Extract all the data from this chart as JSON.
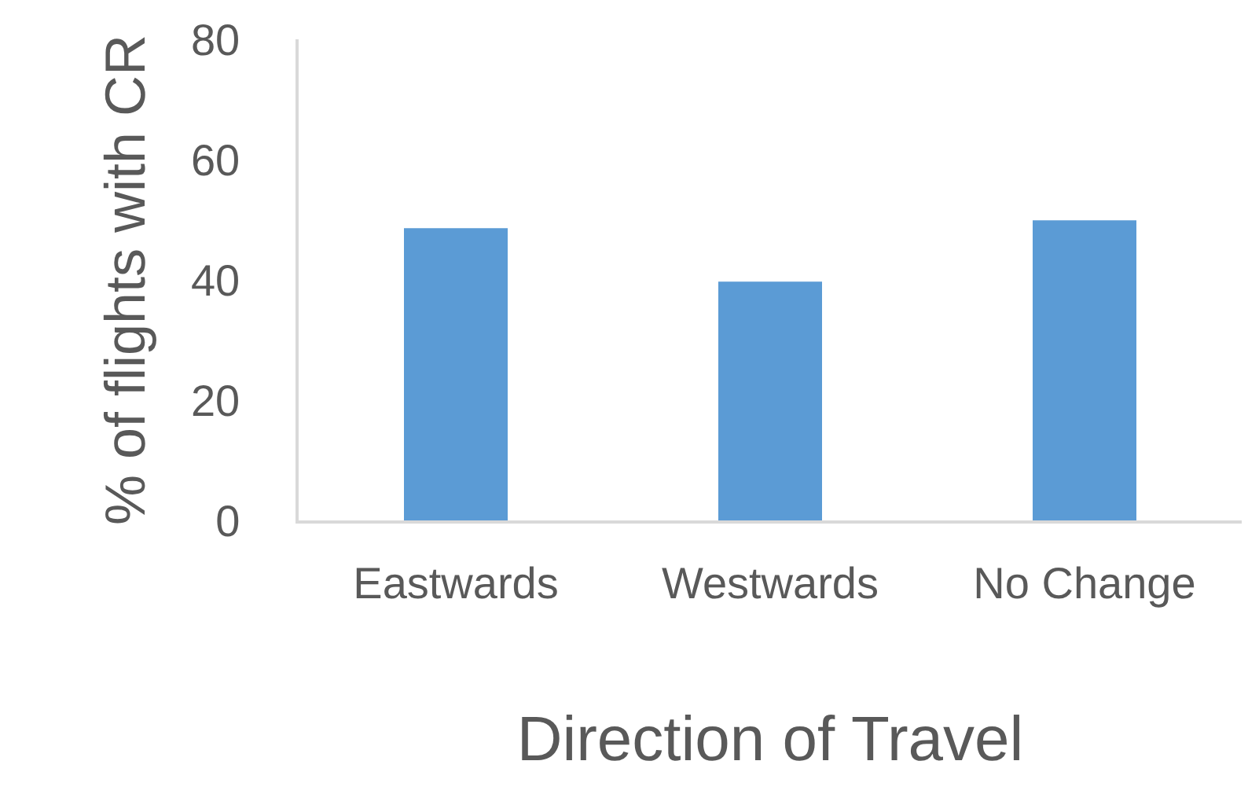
{
  "chart_data": {
    "type": "bar",
    "xlabel": "Direction of Travel",
    "ylabel": "% of flights with CR",
    "categories": [
      "Eastwards",
      "Westwards",
      "No Change"
    ],
    "values": [
      48.6,
      39.7,
      49.9
    ],
    "color": "#5b9bd5",
    "ylim": [
      0,
      80
    ],
    "yticks": [
      0,
      20,
      40,
      60,
      80
    ],
    "grid": false,
    "legend": false
  }
}
